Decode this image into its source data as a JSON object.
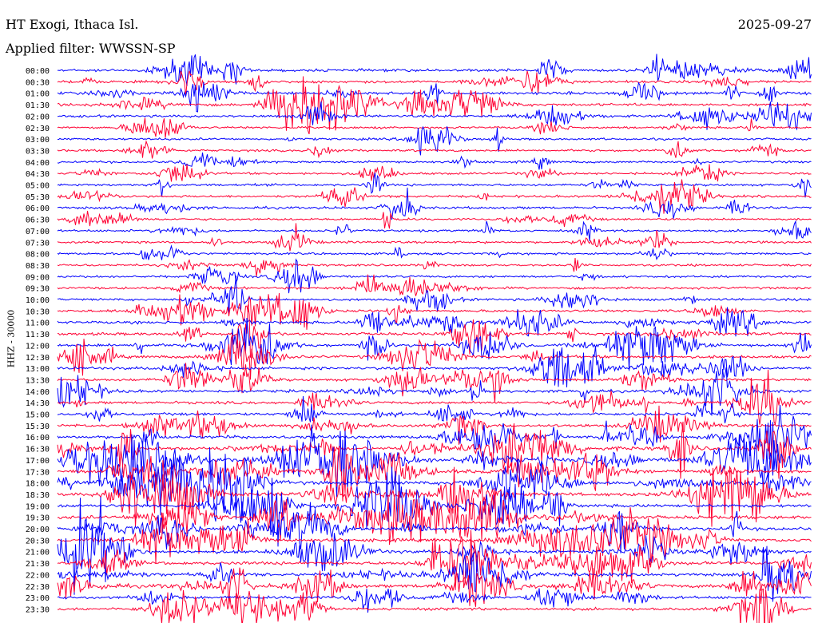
{
  "header": {
    "station": "HT Exogi, Ithaca Isl.",
    "date": "2025-09-27",
    "filter": "Applied filter: WWSSN-SP"
  },
  "chart_data": {
    "type": "line",
    "title": "HT Exogi, Ithaca Isl.",
    "ylabel": "HHZ - 30000",
    "trace_colors": [
      "#0000ff",
      "#ff0033"
    ],
    "rows": [
      {
        "time": "00:00",
        "activity": 0.55
      },
      {
        "time": "00:30",
        "activity": 0.45
      },
      {
        "time": "01:00",
        "activity": 0.65
      },
      {
        "time": "01:30",
        "activity": 0.55
      },
      {
        "time": "02:00",
        "activity": 0.45
      },
      {
        "time": "02:30",
        "activity": 0.35
      },
      {
        "time": "03:00",
        "activity": 0.3
      },
      {
        "time": "03:30",
        "activity": 0.3
      },
      {
        "time": "04:00",
        "activity": 0.3
      },
      {
        "time": "04:30",
        "activity": 0.3
      },
      {
        "time": "05:00",
        "activity": 0.35
      },
      {
        "time": "05:30",
        "activity": 0.4
      },
      {
        "time": "06:00",
        "activity": 0.45
      },
      {
        "time": "06:30",
        "activity": 0.3
      },
      {
        "time": "07:00",
        "activity": 0.3
      },
      {
        "time": "07:30",
        "activity": 0.3
      },
      {
        "time": "08:00",
        "activity": 0.3
      },
      {
        "time": "08:30",
        "activity": 0.3
      },
      {
        "time": "09:00",
        "activity": 0.35
      },
      {
        "time": "09:30",
        "activity": 0.35
      },
      {
        "time": "10:00",
        "activity": 0.4
      },
      {
        "time": "10:30",
        "activity": 0.5
      },
      {
        "time": "11:00",
        "activity": 0.55
      },
      {
        "time": "11:30",
        "activity": 0.6
      },
      {
        "time": "12:00",
        "activity": 0.65
      },
      {
        "time": "12:30",
        "activity": 0.6
      },
      {
        "time": "13:00",
        "activity": 0.55
      },
      {
        "time": "13:30",
        "activity": 0.5
      },
      {
        "time": "14:00",
        "activity": 0.6
      },
      {
        "time": "14:30",
        "activity": 0.55
      },
      {
        "time": "15:00",
        "activity": 0.6
      },
      {
        "time": "15:30",
        "activity": 0.65
      },
      {
        "time": "16:00",
        "activity": 0.75
      },
      {
        "time": "16:30",
        "activity": 0.95
      },
      {
        "time": "17:00",
        "activity": 1.0
      },
      {
        "time": "17:30",
        "activity": 0.95
      },
      {
        "time": "18:00",
        "activity": 0.9
      },
      {
        "time": "18:30",
        "activity": 0.85
      },
      {
        "time": "19:00",
        "activity": 0.8
      },
      {
        "time": "19:30",
        "activity": 0.85
      },
      {
        "time": "20:00",
        "activity": 0.85
      },
      {
        "time": "20:30",
        "activity": 0.85
      },
      {
        "time": "21:00",
        "activity": 0.75
      },
      {
        "time": "21:30",
        "activity": 0.8
      },
      {
        "time": "22:00",
        "activity": 0.75
      },
      {
        "time": "22:30",
        "activity": 0.8
      },
      {
        "time": "23:00",
        "activity": 0.6
      },
      {
        "time": "23:30",
        "activity": 0.55
      }
    ]
  }
}
